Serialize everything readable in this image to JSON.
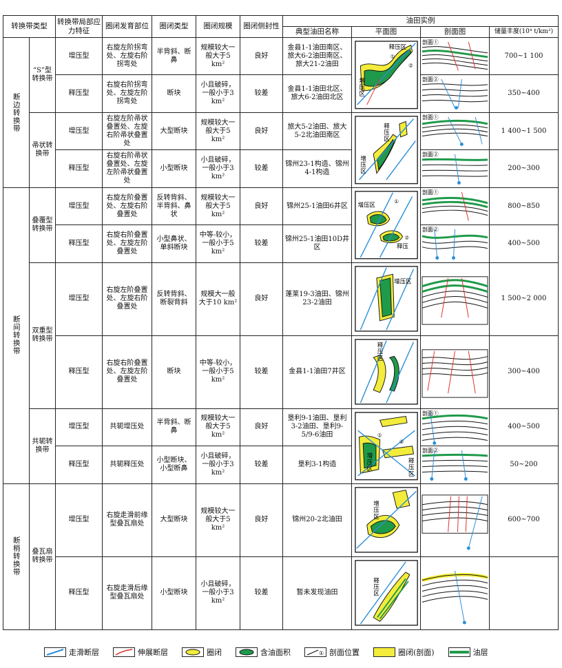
{
  "headers": {
    "zone_type": "转换带类型",
    "stress": "转换带局部应力特征",
    "position": "圈闭发育部位",
    "trap_type": "圈闭类型",
    "scale": "圈闭规模",
    "seal": "圈闭侧封性",
    "examples": "油田实例",
    "field_name": "典型油田名称",
    "plan": "平面图",
    "section": "剖面图",
    "abundance": "储量丰度(10⁴ t/km²)"
  },
  "groups": {
    "g1": "断边转换带",
    "g2": "断间转换带",
    "g3": "断梢转换带"
  },
  "subgroups": {
    "s_type": "“S”型转换带",
    "comb": "帚状转换带",
    "overlap": "叠覆型转换带",
    "double": "双重型转换带",
    "yoke": "共轭转换带",
    "imbricate": "叠瓦扇转换带"
  },
  "rows": [
    {
      "stress": "增压型",
      "position": "右旋左阶拐弯处、左旋右阶拐弯处",
      "trap": "半背斜、断鼻",
      "scale": "规模较大一般大于5 km²",
      "seal": "良好",
      "field": "金县1-1油田南区、旅大6-2油田南区、旅大21-2油田",
      "abundance": "700~1 100"
    },
    {
      "stress": "释压型",
      "position": "右旋右阶拐弯处、左旋左阶拐弯处",
      "trap": "断块",
      "scale": "小且破碎，一般小于3 km²",
      "seal": "较差",
      "field": "金县1-1油田北区、旅大6-2油田北区",
      "abundance": "350~400"
    },
    {
      "stress": "增压型",
      "position": "右旋左阶帚状叠置处、左旋右阶帚状叠置处",
      "trap": "大型断块",
      "scale": "规模较大一般大于5 km²",
      "seal": "良好",
      "field": "旅大5-2油田、旅大5-2北油田南区",
      "abundance": "1 400~1 500"
    },
    {
      "stress": "释压型",
      "position": "右旋右阶帚状叠置处、左旋左阶帚状叠置处",
      "trap": "小型断块",
      "scale": "小且破碎，一般小于3 km²",
      "seal": "较差",
      "field": "锦州23-1构造、锦州4-1构造",
      "abundance": "200~300"
    },
    {
      "stress": "增压型",
      "position": "右旋左阶叠置处、左旋右阶叠置处",
      "trap": "反转背斜、半背斜、鼻状",
      "scale": "规模较大一般大于5 km²",
      "seal": "良好",
      "field": "锦州25-1油田6井区",
      "abundance": "800~850"
    },
    {
      "stress": "释压型",
      "position": "右旋右阶叠置处、左旋左阶叠置处",
      "trap": "小型鼻状、单斜断块",
      "scale": "中等-较小，一般小于5 km²",
      "seal": "较差",
      "field": "锦州25-1油田10D井区",
      "abundance": "400~500"
    },
    {
      "stress": "增压型",
      "position": "右旋左阶叠置处、左旋右阶叠置处",
      "trap": "反转背斜、断裂背斜",
      "scale": "规模大一般大于10 km²",
      "seal": "良好",
      "field": "蓬莱19-3油田、锦州23-2油田",
      "abundance": "1 500~2 000"
    },
    {
      "stress": "释压型",
      "position": "右旋右阶叠置处、左旋左阶叠置处",
      "trap": "断块",
      "scale": "中等-较小，一般小于5 km²",
      "seal": "较差",
      "field": "金县1-1油田7井区",
      "abundance": "300~400"
    },
    {
      "stress": "增压型",
      "position": "共轭增压处",
      "trap": "半背斜、断鼻",
      "scale": "规模较大一般大于5 km²",
      "seal": "良好",
      "field": "垦利9-1油田、垦利3-2油田、垦利9-5/9-6油田",
      "abundance": "400~500"
    },
    {
      "stress": "释压型",
      "position": "共轭释压处",
      "trap": "小型断块、小型断鼻",
      "scale": "小且破碎，一般小于3 km²",
      "seal": "较差",
      "field": "垦利3-1构造",
      "abundance": "50~200"
    },
    {
      "stress": "增压型",
      "position": "右旋走滑前缘型叠瓦扇处",
      "trap": "大型断块",
      "scale": "规模较大一般大于5 km²",
      "seal": "良好",
      "field": "锦州20-2北油田",
      "abundance": "600~700"
    },
    {
      "stress": "释压型",
      "position": "右旋走滑后缘型叠瓦扇处",
      "trap": "小型断块",
      "scale": "小且破碎，一般小于3 km²",
      "seal": "较差",
      "field": "暂未发现油田",
      "abundance": ""
    }
  ],
  "figure_labels": {
    "release": "释压区",
    "increase": "增压区",
    "sec1": "剖面①",
    "sec2": "剖面②",
    "c1": "①",
    "c2": "②"
  },
  "legend": {
    "strike_slip": "走滑断层",
    "normal": "伸展断层",
    "trap": "圈闭",
    "oil_area": "含油面积",
    "section_pos": "剖面位置",
    "trap_section": "圈闭(剖面)",
    "oil_layer": "油层"
  },
  "colors": {
    "oil": "#1f9a4a",
    "trap": "#f3ec3a",
    "strike_fault": "#2a8fd8",
    "normal_fault": "#e0302a"
  }
}
